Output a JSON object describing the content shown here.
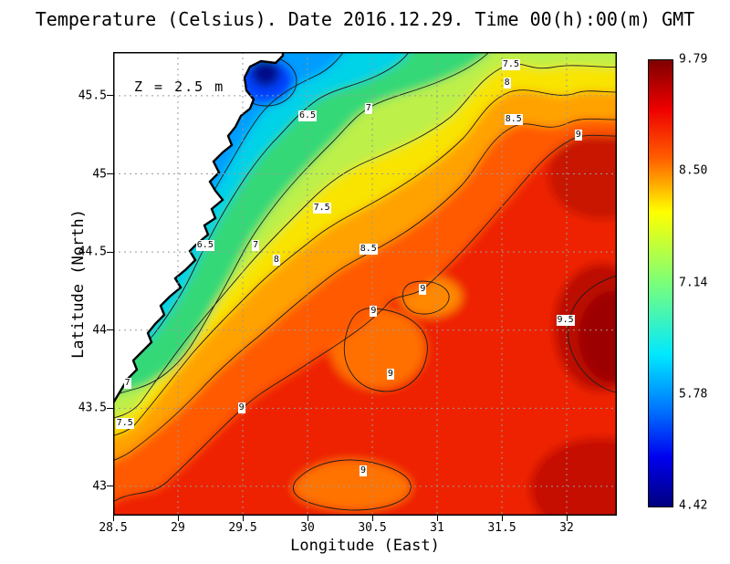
{
  "title": "Temperature (Celsius). Date 2016.12.29. Time 00(h):00(m) GMT",
  "annotation": "Z = 2.5 m",
  "axes": {
    "x_label": "Longitude (East)",
    "y_label": "Latitude (North)",
    "x_ticks": [
      "28.5",
      "29",
      "29.5",
      "30",
      "30.5",
      "31",
      "31.5",
      "32"
    ],
    "y_ticks": [
      "43",
      "43.5",
      "44",
      "44.5",
      "45",
      "45.5"
    ]
  },
  "colorbar": {
    "labels": [
      "9.79",
      "8.50",
      "7.14",
      "5.78",
      "4.42"
    ],
    "stops": [
      {
        "pct": 0,
        "color": "#7f0000"
      },
      {
        "pct": 11,
        "color": "#ee0000"
      },
      {
        "pct": 22,
        "color": "#ff5e00"
      },
      {
        "pct": 34,
        "color": "#ffff00"
      },
      {
        "pct": 50,
        "color": "#7aff7a"
      },
      {
        "pct": 66,
        "color": "#00e8ff"
      },
      {
        "pct": 78,
        "color": "#0077ff"
      },
      {
        "pct": 89,
        "color": "#0000ee"
      },
      {
        "pct": 100,
        "color": "#00007f"
      }
    ]
  },
  "chart_data": {
    "type": "heatmap",
    "variable": "Temperature",
    "units": "Celsius",
    "date": "2016.12.29",
    "time": "00(h):00(m) GMT",
    "depth_label": "Z = 2.5 m",
    "lon_range": [
      28.5,
      32.39
    ],
    "lat_range": [
      42.81,
      45.78
    ],
    "scale_min": 4.42,
    "scale_max": 9.79,
    "colormap": "jet",
    "contour_levels": [
      5,
      5.5,
      6,
      6.5,
      7,
      7.5,
      8,
      8.5,
      9,
      9.5
    ],
    "contour_labels": [
      {
        "value": "7.5",
        "lon": 31.57,
        "lat": 45.7
      },
      {
        "value": "8",
        "lon": 31.54,
        "lat": 45.58
      },
      {
        "value": "6.5",
        "lon": 30.0,
        "lat": 45.37
      },
      {
        "value": "7",
        "lon": 30.47,
        "lat": 45.42
      },
      {
        "value": "8.5",
        "lon": 31.59,
        "lat": 45.35
      },
      {
        "value": "9",
        "lon": 32.09,
        "lat": 45.25
      },
      {
        "value": "7.5",
        "lon": 30.11,
        "lat": 44.78
      },
      {
        "value": "6.5",
        "lon": 29.21,
        "lat": 44.54
      },
      {
        "value": "7",
        "lon": 29.6,
        "lat": 44.54
      },
      {
        "value": "8",
        "lon": 29.76,
        "lat": 44.45
      },
      {
        "value": "8.5",
        "lon": 30.47,
        "lat": 44.52
      },
      {
        "value": "9",
        "lon": 30.89,
        "lat": 44.26
      },
      {
        "value": "9",
        "lon": 30.51,
        "lat": 44.12
      },
      {
        "value": "9.5",
        "lon": 31.99,
        "lat": 44.06
      },
      {
        "value": "9",
        "lon": 30.64,
        "lat": 43.72
      },
      {
        "value": "7",
        "lon": 28.61,
        "lat": 43.66
      },
      {
        "value": "9",
        "lon": 29.49,
        "lat": 43.5
      },
      {
        "value": "7.5",
        "lon": 28.59,
        "lat": 43.4
      },
      {
        "value": "9",
        "lon": 30.43,
        "lat": 43.1
      }
    ],
    "sampled_field": {
      "lons": [
        29,
        29.5,
        30,
        30.5,
        31,
        31.5,
        32
      ],
      "lats": [
        45.5,
        45,
        44.5,
        44,
        43.5,
        43
      ],
      "temps": [
        [
          null,
          null,
          6.6,
          7.2,
          7.6,
          7.9,
          8.3
        ],
        [
          null,
          6.4,
          7.8,
          8.4,
          8.8,
          9.0,
          9.3
        ],
        [
          6.3,
          7.5,
          8.5,
          8.9,
          9.1,
          9.1,
          9.3
        ],
        [
          7.0,
          8.7,
          9.0,
          9.1,
          9.2,
          9.2,
          9.6
        ],
        [
          7.6,
          9.0,
          9.1,
          9.0,
          9.1,
          9.2,
          9.4
        ],
        [
          8.7,
          9.0,
          9.1,
          8.9,
          9.1,
          9.2,
          9.3
        ]
      ]
    }
  },
  "colors": {
    "land": "#ffffff",
    "coastline": "#000000",
    "grid": "#9a9a9a",
    "frame": "#000000",
    "warm_red": "#ee2000",
    "cold_navy": "#000d8a"
  }
}
